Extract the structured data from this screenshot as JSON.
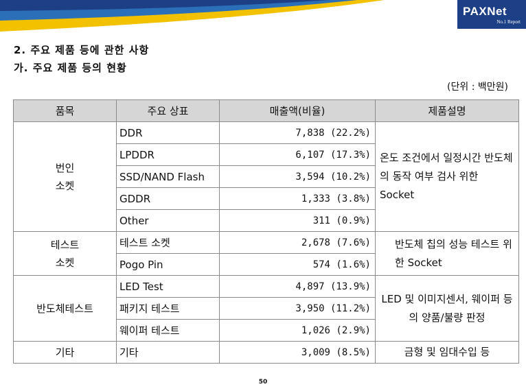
{
  "logo": {
    "name": "PAXNet",
    "tagline": "No.1 Report"
  },
  "heading": {
    "line1": "2. 주요 제품 등에 관한 사항",
    "line2": "가. 주요 제품 등의 현황"
  },
  "unit_label": "(단위 : 백만원)",
  "table": {
    "headers": [
      "품목",
      "주요 상표",
      "매출액(비율)",
      "제품설명"
    ],
    "groups": [
      {
        "category": "번인\n소켓",
        "description": "온도 조건에서 일정시간 반도체의 동작 여부 검사 위한 Socket",
        "rows": [
          {
            "product": "DDR",
            "sales": "7,838 (22.2%)"
          },
          {
            "product": "LPDDR",
            "sales": "6,107 (17.3%)"
          },
          {
            "product": "SSD/NAND Flash",
            "sales": "3,594 (10.2%)"
          },
          {
            "product": "GDDR",
            "sales": "1,333 (3.8%)"
          },
          {
            "product": "Other",
            "sales": "311 (0.9%)"
          }
        ]
      },
      {
        "category": "테스트\n소켓",
        "description": "반도체 칩의 성능 테스트 위한 Socket",
        "rows": [
          {
            "product": "테스트 소켓",
            "sales": "2,678 (7.6%)"
          },
          {
            "product": "Pogo Pin",
            "sales": "574 (1.6%)"
          }
        ]
      },
      {
        "category": "반도체테스트",
        "description": "LED 및 이미지센서, 웨이퍼 등의 양품/불량 판정",
        "rows": [
          {
            "product": "LED Test",
            "sales": "4,897 (13.9%)"
          },
          {
            "product": "패키지 테스트",
            "sales": "3,950 (11.2%)"
          },
          {
            "product": "웨이퍼 테스트",
            "sales": "1,026 (2.9%)"
          }
        ]
      },
      {
        "category": "기타",
        "description": "금형 및 임대수입 등",
        "rows": [
          {
            "product": "기타",
            "sales": "3,009 (8.5%)"
          }
        ]
      }
    ]
  },
  "page_number": "50",
  "colors": {
    "banner_blue": "#1d3f86",
    "banner_yellow": "#f2c200",
    "header_gray": "#d6d6d6"
  }
}
